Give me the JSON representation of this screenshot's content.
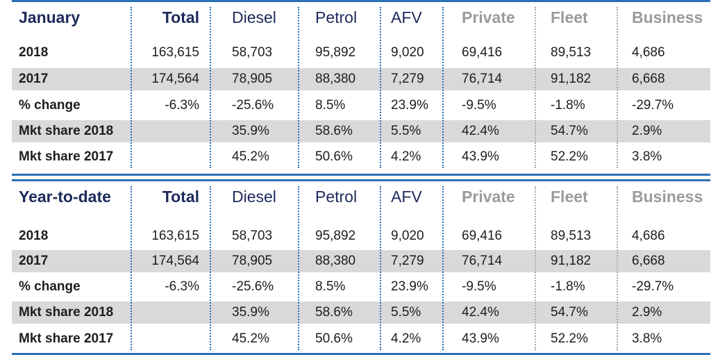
{
  "colors": {
    "accent": "#2a6fb7",
    "header_dark": "#1d2a5b",
    "header_grey": "#9b9b9b",
    "row_shade": "#d9d9d9"
  },
  "columns": [
    "Total",
    "Diesel",
    "Petrol",
    "AFV",
    "Private",
    "Fleet",
    "Business"
  ],
  "tables": [
    {
      "title": "January",
      "rows": [
        {
          "label": "2018",
          "values": [
            "163,615",
            "58,703",
            "95,892",
            "9,020",
            "69,416",
            "89,513",
            "4,686"
          ]
        },
        {
          "label": "2017",
          "values": [
            "174,564",
            "78,905",
            "88,380",
            "7,279",
            "76,714",
            "91,182",
            "6,668"
          ]
        },
        {
          "label": "% change",
          "values": [
            "-6.3%",
            "-25.6%",
            "8.5%",
            "23.9%",
            "-9.5%",
            "-1.8%",
            "-29.7%"
          ]
        },
        {
          "label": "Mkt share 2018",
          "values": [
            "",
            "35.9%",
            "58.6%",
            "5.5%",
            "42.4%",
            "54.7%",
            "2.9%"
          ]
        },
        {
          "label": "Mkt share 2017",
          "values": [
            "",
            "45.2%",
            "50.6%",
            "4.2%",
            "43.9%",
            "52.2%",
            "3.8%"
          ]
        }
      ]
    },
    {
      "title": "Year-to-date",
      "rows": [
        {
          "label": "2018",
          "values": [
            "163,615",
            "58,703",
            "95,892",
            "9,020",
            "69,416",
            "89,513",
            "4,686"
          ]
        },
        {
          "label": "2017",
          "values": [
            "174,564",
            "78,905",
            "88,380",
            "7,279",
            "76,714",
            "91,182",
            "6,668"
          ]
        },
        {
          "label": "% change",
          "values": [
            "-6.3%",
            "-25.6%",
            "8.5%",
            "23.9%",
            "-9.5%",
            "-1.8%",
            "-29.7%"
          ]
        },
        {
          "label": "Mkt share 2018",
          "values": [
            "",
            "35.9%",
            "58.6%",
            "5.5%",
            "42.4%",
            "54.7%",
            "2.9%"
          ]
        },
        {
          "label": "Mkt share 2017",
          "values": [
            "",
            "45.2%",
            "50.6%",
            "4.2%",
            "43.9%",
            "52.2%",
            "3.8%"
          ]
        }
      ]
    }
  ]
}
